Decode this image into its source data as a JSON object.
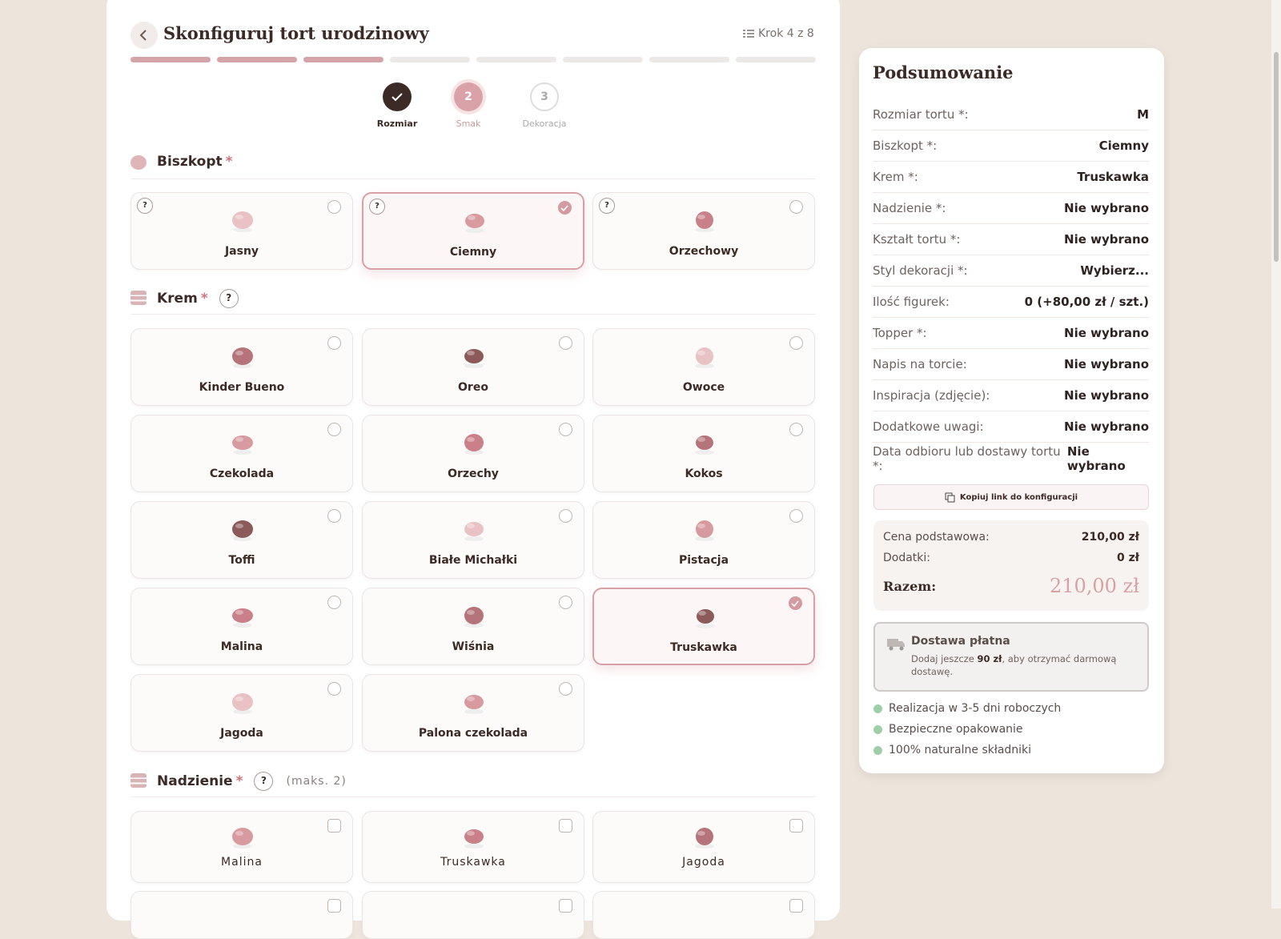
{
  "header": {
    "title": "Skonfiguruj tort urodzinowy",
    "step": "Krok 4 z 8"
  },
  "steps": [
    {
      "label": "Rozmiar"
    },
    {
      "number": "2",
      "label": "Smak"
    },
    {
      "number": "3",
      "label": "Dekoracja"
    }
  ],
  "sections": [
    {
      "title": "Biszkopt",
      "required": "*",
      "options": [
        {
          "label": "Jasny",
          "help": "?"
        },
        {
          "label": "Ciemny",
          "help": "?",
          "selected": true
        },
        {
          "label": "Orzechowy",
          "help": "?"
        }
      ]
    },
    {
      "title": "Krem",
      "required": "*",
      "help": "?",
      "options": [
        {
          "label": "Kinder Bueno"
        },
        {
          "label": "Oreo"
        },
        {
          "label": "Owoce"
        },
        {
          "label": "Czekolada"
        },
        {
          "label": "Orzechy"
        },
        {
          "label": "Kokos"
        },
        {
          "label": "Toffi"
        },
        {
          "label": "Białe Michałki"
        },
        {
          "label": "Pistacja"
        },
        {
          "label": "Malina"
        },
        {
          "label": "Wiśnia"
        },
        {
          "label": "Truskawka",
          "selected": true
        },
        {
          "label": "Jagoda"
        },
        {
          "label": "Palona czekolada"
        }
      ]
    },
    {
      "title": "Nadzienie",
      "required": "*",
      "help": "?",
      "note": "(maks. 2)",
      "options": [
        {
          "label": "Malina"
        },
        {
          "label": "Truskawka"
        },
        {
          "label": "Jagoda"
        }
      ]
    }
  ],
  "summary": {
    "title": "Podsumowanie",
    "rows": [
      {
        "label": "Rozmiar tortu *:",
        "value": "M"
      },
      {
        "label": "Biszkopt *:",
        "value": "Ciemny"
      },
      {
        "label": "Krem *:",
        "value": "Truskawka"
      },
      {
        "label": "Nadzienie *:",
        "value": "Nie wybrano"
      },
      {
        "label": "Kształt tortu *:",
        "value": "Nie wybrano"
      },
      {
        "label": "Styl dekoracji *:",
        "value": "Wybierz..."
      },
      {
        "label": "Ilość figurek:",
        "value": "0 (+80,00 zł / szt.)"
      },
      {
        "label": "Topper *:",
        "value": "Nie wybrano"
      },
      {
        "label": "Napis na torcie:",
        "value": "Nie wybrano"
      },
      {
        "label": "Inspiracja (zdjęcie):",
        "value": "Nie wybrano"
      },
      {
        "label": "Dodatkowe uwagi:",
        "value": "Nie wybrano"
      },
      {
        "label": "Data odbioru lub dostawy tortu *:",
        "value": "Nie wybrano"
      }
    ],
    "copy_link": "Kopiuj link do konfiguracji",
    "price": {
      "rows": [
        {
          "label": "Cena podstawowa:",
          "value": "210,00 zł"
        },
        {
          "label": "Dodatki:",
          "value": "0 zł"
        }
      ],
      "total_label": "Razem:",
      "total_value": "210,00 zł"
    },
    "delivery": {
      "title": "Dostawa płatna",
      "text_before": "Dodaj jeszcze ",
      "amount": "90 zł",
      "text_after": ", aby otrzymać darmową dostawę."
    },
    "features": [
      "Realizacja w 3-5 dni roboczych",
      "Bezpieczne opakowanie",
      "100% naturalne składniki"
    ]
  }
}
